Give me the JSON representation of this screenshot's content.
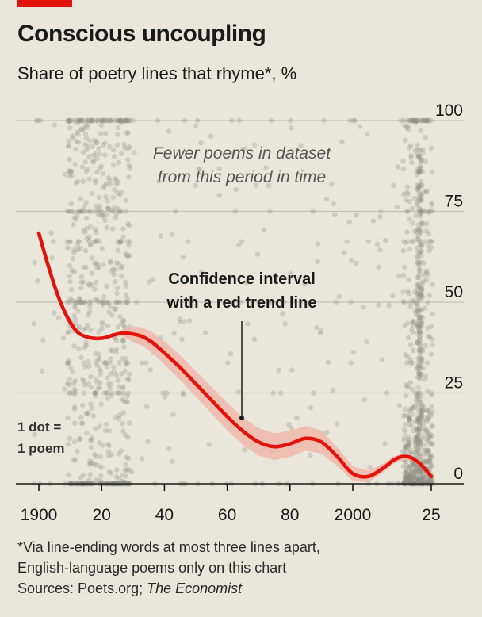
{
  "header": {
    "title": "Conscious uncoupling",
    "subtitle": "Share of poetry lines that rhyme*, %"
  },
  "colors": {
    "background": "#e9e7dc",
    "accent_red": "#e3120b",
    "trend_line": "#e3120b",
    "confidence_band": "#f0b7a7",
    "dots": "#8c8b83",
    "gridline": "#c4c2b6",
    "axis": "#1a1a1a"
  },
  "annotations": {
    "period_line1": "Fewer poems in dataset",
    "period_line2": "from this period in time",
    "ci_line1": "Confidence interval",
    "ci_line2": "with a red trend line",
    "dot_line1": "1 dot =",
    "dot_line2": "1 poem"
  },
  "chart_data": {
    "type": "scatter",
    "title": "Conscious uncoupling",
    "subtitle": "Share of poetry lines that rhyme*, %",
    "xlim": [
      1897,
      2028
    ],
    "ylim": [
      0,
      100
    ],
    "x_ticks": [
      1900,
      1920,
      1940,
      1960,
      1980,
      2000,
      2025
    ],
    "x_tick_labels": [
      "1900",
      "20",
      "40",
      "60",
      "80",
      "2000",
      "25"
    ],
    "y_ticks": [
      0,
      25,
      50,
      75,
      100
    ],
    "y_tick_labels": [
      "0",
      "25",
      "50",
      "75",
      "100"
    ],
    "y_axis_position": "right",
    "grid": true,
    "trend": {
      "x": [
        1900,
        1903,
        1906,
        1909,
        1912,
        1915,
        1918,
        1921,
        1924,
        1927,
        1930,
        1933,
        1936,
        1940,
        1945,
        1950,
        1955,
        1960,
        1965,
        1970,
        1975,
        1980,
        1985,
        1990,
        1995,
        2000,
        2005,
        2010,
        2013,
        2016,
        2019,
        2022,
        2025
      ],
      "y": [
        69,
        60,
        52,
        46,
        42,
        40.5,
        40,
        40.2,
        41,
        41.5,
        41.2,
        40.5,
        39,
        36,
        32,
        27.5,
        23,
        18.5,
        14.5,
        11.5,
        10.2,
        11,
        12.5,
        11.5,
        7.5,
        2.8,
        2,
        4.5,
        6.5,
        7.5,
        7,
        5,
        2
      ]
    },
    "band_halfwidth": {
      "x": [
        1925,
        1930,
        1940,
        1950,
        1960,
        1970,
        1980,
        1990,
        2000,
        2010,
        2020
      ],
      "w": [
        0.2,
        2.2,
        3.2,
        3.6,
        3.8,
        3.8,
        3.6,
        3.2,
        2.0,
        1.2,
        0.6
      ]
    },
    "density_note": "Dense clusters of dots around 1910-1928 and 2020-2025; sparse 1930-2015"
  },
  "footnote": {
    "line1": "*Via line-ending words at most three lines apart,",
    "line2": "English-language poems only on this chart",
    "sources_prefix": "Sources: Poets.org; ",
    "sources_economist": "The Economist"
  }
}
